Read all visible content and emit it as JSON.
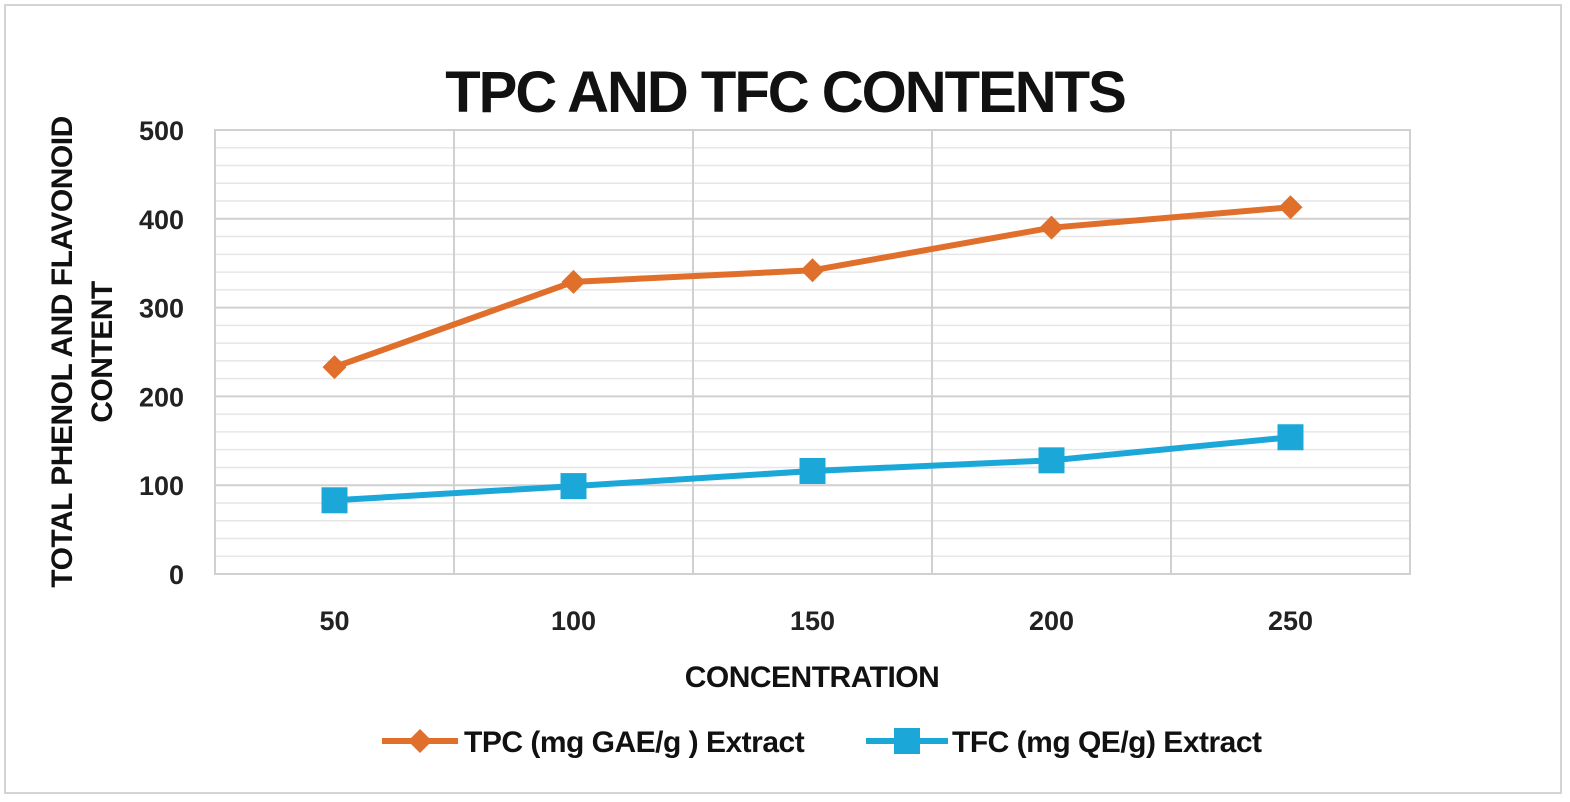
{
  "chart_data": {
    "type": "line",
    "title": "TPC AND TFC CONTENTS",
    "xlabel": "CONCENTRATION",
    "ylabel_line1": "TOTAL PHENOL AND FLAVONOID",
    "ylabel_line2": "CONTENT",
    "categories": [
      "50",
      "100",
      "150",
      "200",
      "250"
    ],
    "y_ticks": [
      "0",
      "100",
      "200",
      "300",
      "400",
      "500"
    ],
    "ylim": [
      0,
      500
    ],
    "grid": true,
    "legend_position": "bottom",
    "series": [
      {
        "name": "TPC (mg GAE/g ) Extract",
        "values": [
          233,
          329,
          342,
          390,
          413
        ],
        "color": "#e06f2c",
        "marker": "diamond"
      },
      {
        "name": "TFC (mg QE/g) Extract",
        "values": [
          83,
          99,
          116,
          128,
          154
        ],
        "color": "#1ba8d8",
        "marker": "square"
      }
    ]
  }
}
